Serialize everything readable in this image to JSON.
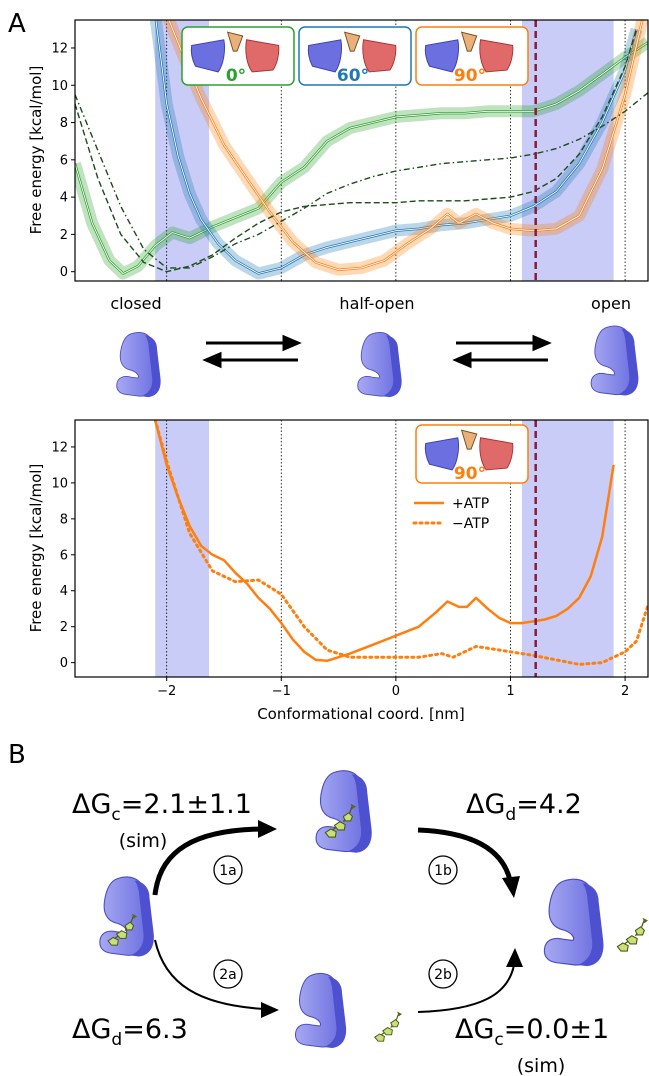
{
  "panels": {
    "a_label": "A",
    "b_label": "B"
  },
  "colors": {
    "green": "#2ca02c",
    "blue": "#1f77b4",
    "orange": "#ff7f0e",
    "dark_green": "#1a4d1a",
    "shade": "#c8ccf7",
    "marker": "#8b1a3a"
  },
  "chart_data": [
    {
      "type": "line",
      "ylabel": "Free energy [kcal/mol]",
      "xlim": [
        -2.8,
        2.2
      ],
      "ylim": [
        -0.5,
        13.5
      ],
      "yticks": [
        0,
        2,
        4,
        6,
        8,
        10,
        12
      ],
      "shaded_regions": [
        [
          -2.1,
          -1.63
        ],
        [
          1.1,
          1.9
        ]
      ],
      "vertical_dotted": [
        -2,
        -1,
        0,
        1,
        2
      ],
      "marker_line": 1.22,
      "insets": [
        {
          "label": "0°",
          "color": "green"
        },
        {
          "label": "60°",
          "color": "blue"
        },
        {
          "label": "90°",
          "color": "orange"
        }
      ],
      "series": [
        {
          "style": "green",
          "x": [
            -2.8,
            -2.65,
            -2.5,
            -2.38,
            -2.25,
            -2.1,
            -1.95,
            -1.8,
            -1.6,
            -1.4,
            -1.2,
            -1.0,
            -0.8,
            -0.6,
            -0.4,
            -0.2,
            0.0,
            0.2,
            0.4,
            0.6,
            0.8,
            1.0,
            1.2,
            1.4,
            1.6,
            1.8,
            2.0,
            2.2
          ],
          "y": [
            5.8,
            2.6,
            0.6,
            -0.1,
            0.3,
            1.4,
            2.1,
            1.8,
            2.4,
            2.9,
            3.4,
            4.8,
            5.6,
            7.0,
            7.7,
            8.0,
            8.3,
            8.4,
            8.5,
            8.5,
            8.6,
            8.6,
            8.6,
            9.0,
            9.7,
            10.6,
            11.5,
            12.3
          ]
        },
        {
          "style": "blue",
          "x": [
            -2.1,
            -2.0,
            -1.9,
            -1.8,
            -1.7,
            -1.55,
            -1.4,
            -1.2,
            -1.0,
            -0.8,
            -0.6,
            -0.4,
            -0.2,
            0.0,
            0.2,
            0.4,
            0.6,
            0.8,
            1.0,
            1.2,
            1.4,
            1.6,
            1.8,
            2.0,
            2.1
          ],
          "y": [
            13.8,
            9.0,
            6.2,
            4.2,
            2.8,
            1.5,
            0.6,
            -0.1,
            0.2,
            0.9,
            1.3,
            1.6,
            1.9,
            2.2,
            2.3,
            2.5,
            2.6,
            2.8,
            3.0,
            3.5,
            4.3,
            5.8,
            8.0,
            10.8,
            13.0
          ]
        },
        {
          "style": "orange",
          "x": [
            -2.0,
            -1.85,
            -1.7,
            -1.5,
            -1.3,
            -1.1,
            -0.9,
            -0.7,
            -0.5,
            -0.3,
            -0.1,
            0.1,
            0.3,
            0.45,
            0.55,
            0.7,
            0.85,
            1.0,
            1.2,
            1.4,
            1.6,
            1.8,
            2.0,
            2.15
          ],
          "y": [
            13.8,
            11.5,
            9.3,
            6.8,
            5.0,
            3.2,
            1.6,
            0.5,
            0.1,
            0.2,
            0.6,
            1.5,
            2.3,
            3.1,
            2.6,
            3.1,
            2.6,
            2.3,
            2.2,
            2.3,
            3.0,
            5.5,
            9.5,
            13.5
          ]
        },
        {
          "style": "dashed",
          "x": [
            -2.8,
            -2.6,
            -2.4,
            -2.2,
            -2.0,
            -1.8,
            -1.6,
            -1.4,
            -1.2,
            -1.0,
            -0.8,
            -0.6,
            -0.4,
            -0.2,
            0.0,
            0.2,
            0.4,
            0.6,
            0.8,
            1.0,
            1.2,
            1.4,
            1.6,
            1.8,
            2.0,
            2.1
          ],
          "y": [
            9.0,
            5.0,
            2.0,
            0.5,
            0.0,
            0.3,
            0.9,
            1.8,
            2.6,
            3.2,
            3.5,
            3.6,
            3.7,
            3.7,
            3.7,
            3.8,
            3.8,
            3.8,
            3.9,
            4.0,
            4.3,
            5.0,
            6.3,
            8.3,
            11.0,
            13.0
          ]
        },
        {
          "style": "dashdot",
          "x": [
            -2.8,
            -2.6,
            -2.4,
            -2.2,
            -2.0,
            -1.8,
            -1.6,
            -1.4,
            -1.2,
            -1.0,
            -0.8,
            -0.6,
            -0.4,
            -0.2,
            0.0,
            0.2,
            0.4,
            0.6,
            0.8,
            1.0,
            1.2,
            1.4,
            1.6,
            1.8,
            2.0,
            2.2
          ],
          "y": [
            9.5,
            6.5,
            3.5,
            1.2,
            0.2,
            0.2,
            0.8,
            1.5,
            2.0,
            2.7,
            3.4,
            4.2,
            4.7,
            5.1,
            5.4,
            5.6,
            5.8,
            5.9,
            6.0,
            6.1,
            6.3,
            6.6,
            7.1,
            7.8,
            8.6,
            9.6
          ]
        }
      ]
    },
    {
      "type": "line",
      "ylabel": "Free energy [kcal/mol]",
      "xlabel": "Conformational coord. [nm]",
      "xlim": [
        -2.8,
        2.2
      ],
      "ylim": [
        -0.8,
        13.5
      ],
      "xticks": [
        -2,
        -1,
        0,
        1,
        2
      ],
      "yticks": [
        0,
        2,
        4,
        6,
        8,
        10,
        12
      ],
      "shaded_regions": [
        [
          -2.1,
          -1.63
        ],
        [
          1.1,
          1.9
        ]
      ],
      "vertical_dotted": [
        -2,
        -1,
        0,
        1,
        2
      ],
      "marker_line": 1.22,
      "inset": {
        "label": "90°",
        "color": "orange"
      },
      "series": [
        {
          "name": "+ATP",
          "style": "solid",
          "x": [
            -2.1,
            -2.0,
            -1.9,
            -1.8,
            -1.7,
            -1.6,
            -1.5,
            -1.4,
            -1.3,
            -1.2,
            -1.1,
            -1.0,
            -0.9,
            -0.8,
            -0.7,
            -0.6,
            -0.4,
            -0.2,
            0.0,
            0.2,
            0.35,
            0.45,
            0.55,
            0.62,
            0.7,
            0.8,
            0.9,
            1.0,
            1.1,
            1.2,
            1.3,
            1.4,
            1.5,
            1.6,
            1.7,
            1.8,
            1.9
          ],
          "y": [
            13.5,
            11.0,
            9.2,
            7.6,
            6.5,
            6.0,
            5.7,
            5.0,
            4.4,
            3.6,
            3.0,
            2.2,
            1.3,
            0.6,
            0.15,
            0.1,
            0.5,
            1.0,
            1.5,
            2.0,
            2.8,
            3.4,
            3.1,
            3.1,
            3.6,
            3.0,
            2.5,
            2.2,
            2.2,
            2.3,
            2.4,
            2.6,
            3.0,
            3.6,
            4.8,
            7.0,
            11.0
          ]
        },
        {
          "name": "−ATP",
          "style": "dotted",
          "x": [
            -2.1,
            -2.0,
            -1.8,
            -1.6,
            -1.4,
            -1.2,
            -1.0,
            -0.8,
            -0.6,
            -0.4,
            -0.2,
            0.0,
            0.2,
            0.4,
            0.5,
            0.7,
            0.9,
            1.0,
            1.2,
            1.4,
            1.6,
            1.8,
            2.0,
            2.1,
            2.2
          ],
          "y": [
            13.5,
            11.2,
            7.2,
            5.1,
            4.5,
            4.6,
            3.8,
            2.0,
            0.7,
            0.3,
            0.3,
            0.3,
            0.3,
            0.5,
            0.3,
            0.9,
            0.7,
            0.6,
            0.4,
            0.15,
            -0.1,
            0.0,
            0.6,
            1.2,
            3.2
          ]
        }
      ]
    }
  ],
  "states": {
    "closed": "closed",
    "half_open": "half-open",
    "open": "open"
  },
  "scheme": {
    "top_left_dg": "ΔG",
    "top_left_sub": "c",
    "top_left_val": "=2.1±1.1",
    "top_left_sim": "(sim)",
    "top_right_dg": "ΔG",
    "top_right_sub": "d",
    "top_right_val": "=4.2",
    "bottom_left_dg": "ΔG",
    "bottom_left_sub": "d",
    "bottom_left_val": "=6.3",
    "bottom_right_dg": "ΔG",
    "bottom_right_sub": "c",
    "bottom_right_val": "=0.0±1",
    "bottom_right_sim": "(sim)",
    "steps": [
      "1a",
      "1b",
      "2a",
      "2b"
    ]
  }
}
